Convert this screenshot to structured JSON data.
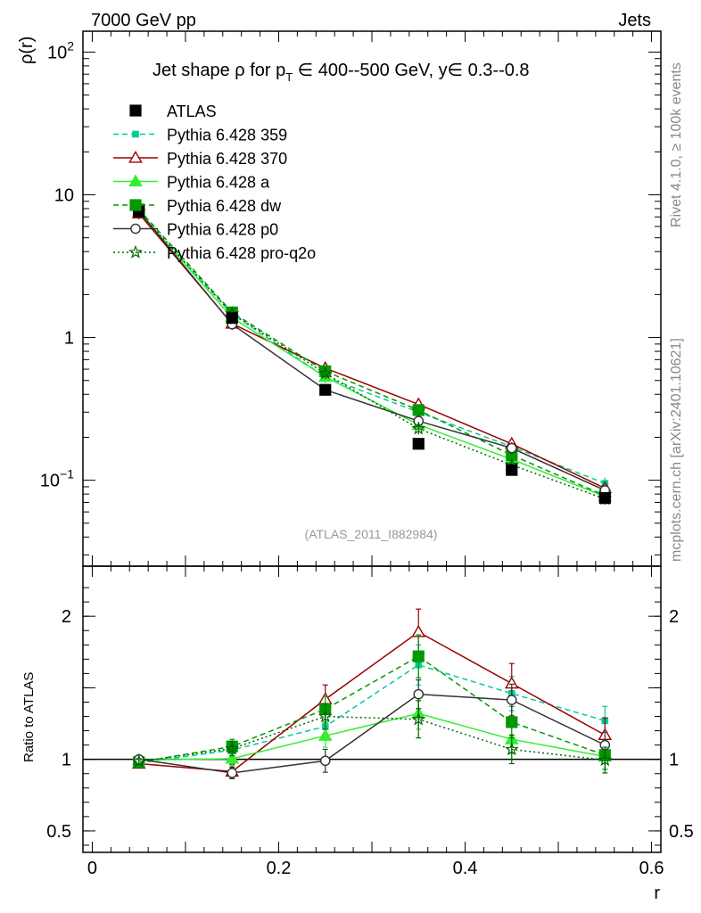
{
  "header": {
    "left": "7000 GeV pp",
    "right": "Jets"
  },
  "side": {
    "rivet": "Rivet 4.1.0, ≥ 100k events",
    "mcplots": "mcplots.cern.ch [arXiv:2401.10621]"
  },
  "colors": {
    "ATLAS": "#000000",
    "p359": "#00cc99",
    "p370": "#990000",
    "pa": "#33ee33",
    "pdw": "#009900",
    "pp0": "#333333",
    "pq2o": "#006600"
  },
  "chart_data": {
    "type": "line",
    "title": "Jet shape ρ for p_T ∈ 400--500 GeV, y∈ 0.3--0.8",
    "title_parts": {
      "prefix": "Jet shape ρ for p",
      "subscript": "T",
      "suffix": " ∈ 400--500 GeV, y∈ 0.3--0.8"
    },
    "watermark": "(ATLAS_2011_I882984)",
    "xlabel": "r",
    "ylabel": "ρ(r)",
    "ratio_ylabel": "Ratio to ATLAS",
    "xlim": [
      -0.01,
      0.61
    ],
    "ylim": [
      0.025,
      140
    ],
    "yscale": "log",
    "ratio_ylim": [
      0.35,
      2.35
    ],
    "x": [
      0.05,
      0.15,
      0.25,
      0.35,
      0.45,
      0.55
    ],
    "x_ticks": [
      "0",
      "0.2",
      "0.4",
      "0.6"
    ],
    "y_ticks": [
      {
        "value": 0.1,
        "mantissa": "10",
        "exp": "−1"
      },
      {
        "value": 1,
        "mantissa": "1",
        "exp": ""
      },
      {
        "value": 10,
        "mantissa": "10",
        "exp": ""
      },
      {
        "value": 100,
        "mantissa": "10",
        "exp": "2"
      }
    ],
    "ratio_ticks": [
      {
        "value": 0.5,
        "label": "0.5"
      },
      {
        "value": 1,
        "label": "1"
      },
      {
        "value": 2,
        "label": "2"
      }
    ],
    "data": {
      "name": "ATLAS",
      "values": [
        7.65,
        1.37,
        0.43,
        0.18,
        0.118,
        0.075
      ]
    },
    "series": [
      {
        "key": "p359",
        "name": "Pythia 6.428 359",
        "marker": "square-small",
        "dash": "6,4",
        "hollow": false,
        "values": [
          7.45,
          1.46,
          0.53,
          0.3,
          0.172,
          0.095
        ],
        "ratio": [
          0.975,
          1.065,
          1.23,
          1.66,
          1.46,
          1.27
        ],
        "ratio_err": [
          0.02,
          0.05,
          0.09,
          0.14,
          0.12,
          0.1
        ]
      },
      {
        "key": "p370",
        "name": "Pythia 6.428 370",
        "marker": "triangle",
        "dash": "",
        "hollow": true,
        "values": [
          7.4,
          1.25,
          0.61,
          0.34,
          0.18,
          0.088
        ],
        "ratio": [
          0.97,
          0.915,
          1.42,
          1.89,
          1.53,
          1.17
        ],
        "ratio_err": [
          0.02,
          0.05,
          0.1,
          0.16,
          0.14,
          0.12
        ]
      },
      {
        "key": "pa",
        "name": "Pythia 6.428 a",
        "marker": "triangle",
        "dash": "",
        "hollow": false,
        "values": [
          7.6,
          1.38,
          0.53,
          0.245,
          0.14,
          0.077
        ],
        "ratio": [
          0.995,
          1.005,
          1.165,
          1.32,
          1.14,
          1.02
        ],
        "ratio_err": [
          0.02,
          0.05,
          0.08,
          0.11,
          0.1,
          0.09
        ]
      },
      {
        "key": "pdw",
        "name": "Pythia 6.428 dw",
        "marker": "square-big",
        "dash": "6,4",
        "hollow": false,
        "values": [
          7.9,
          1.5,
          0.58,
          0.31,
          0.15,
          0.078
        ],
        "ratio": [
          0.98,
          1.09,
          1.35,
          1.72,
          1.26,
          1.03
        ],
        "ratio_err": [
          0.02,
          0.05,
          0.09,
          0.15,
          0.11,
          0.1
        ]
      },
      {
        "key": "pp0",
        "name": "Pythia 6.428 p0",
        "marker": "circle",
        "dash": "",
        "hollow": true,
        "values": [
          7.7,
          1.24,
          0.43,
          0.26,
          0.168,
          0.085
        ],
        "ratio": [
          1.0,
          0.905,
          0.99,
          1.455,
          1.415,
          1.1
        ],
        "ratio_err": [
          0.02,
          0.04,
          0.08,
          0.1,
          0.11,
          0.09
        ]
      },
      {
        "key": "pq2o",
        "name": "Pythia 6.428 pro-q2o",
        "marker": "star",
        "dash": "2,3",
        "hollow": false,
        "values": [
          7.6,
          1.47,
          0.56,
          0.23,
          0.128,
          0.074
        ],
        "ratio": [
          0.985,
          1.075,
          1.3,
          1.28,
          1.07,
          0.995
        ],
        "ratio_err": [
          0.02,
          0.05,
          0.09,
          0.13,
          0.1,
          0.09
        ]
      }
    ]
  }
}
